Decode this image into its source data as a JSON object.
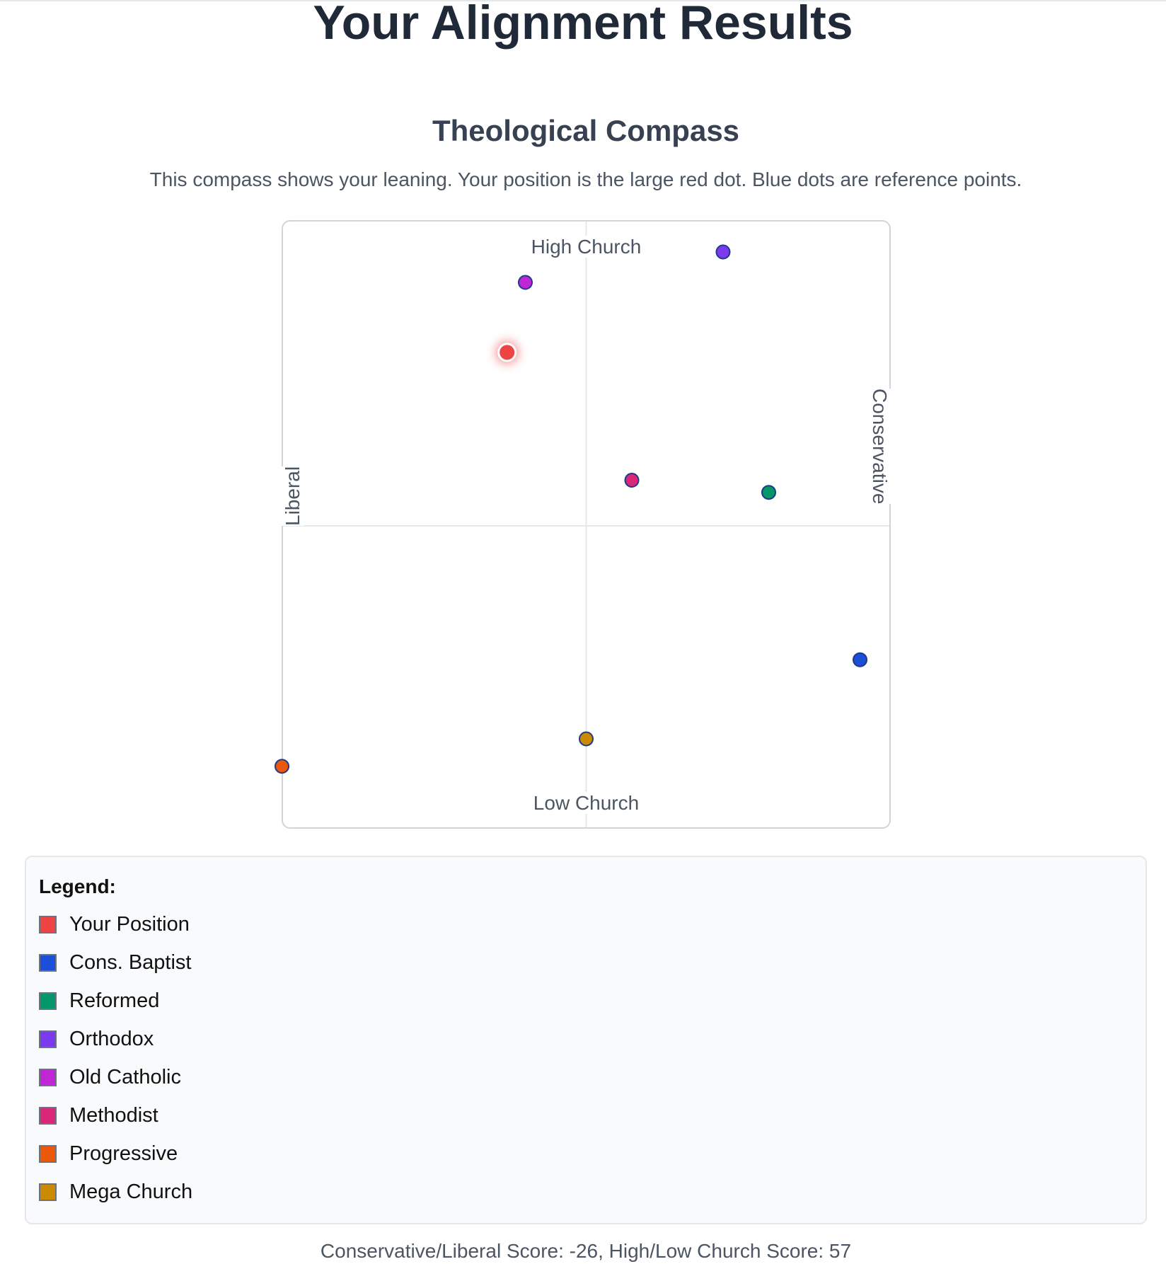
{
  "header": {
    "title": "Your Alignment Results"
  },
  "section": {
    "title": "Theological Compass",
    "description": "This compass shows your leaning. Your position is the large red dot. Blue dots are reference points."
  },
  "chart_data": {
    "type": "scatter",
    "title": "Theological Compass",
    "axis_labels": {
      "top": "High Church",
      "bottom": "Low Church",
      "left": "Liberal",
      "right": "Conservative"
    },
    "xlim": [
      -100,
      100
    ],
    "ylim": [
      -100,
      100
    ],
    "grid": "center crosshair",
    "points": [
      {
        "name": "Your Position",
        "x": -26,
        "y": 57,
        "color": "#ef4444",
        "highlight": true
      },
      {
        "name": "Cons. Baptist",
        "x": 90,
        "y": -44,
        "color": "#1d4ed8"
      },
      {
        "name": "Reformed",
        "x": 60,
        "y": 11,
        "color": "#059669"
      },
      {
        "name": "Orthodox",
        "x": 45,
        "y": 90,
        "color": "#7c3aed"
      },
      {
        "name": "Old Catholic",
        "x": -20,
        "y": 80,
        "color": "#c026d3"
      },
      {
        "name": "Methodist",
        "x": 15,
        "y": 15,
        "color": "#db2777"
      },
      {
        "name": "Progressive",
        "x": -100,
        "y": -79,
        "color": "#ea580c"
      },
      {
        "name": "Mega Church",
        "x": 0,
        "y": -70,
        "color": "#ca8a04"
      }
    ]
  },
  "legend": {
    "title": "Legend:",
    "items": [
      {
        "label": "Your Position",
        "color": "#ef4444"
      },
      {
        "label": "Cons. Baptist",
        "color": "#1d4ed8"
      },
      {
        "label": "Reformed",
        "color": "#059669"
      },
      {
        "label": "Orthodox",
        "color": "#7c3aed"
      },
      {
        "label": "Old Catholic",
        "color": "#c026d3"
      },
      {
        "label": "Methodist",
        "color": "#db2777"
      },
      {
        "label": "Progressive",
        "color": "#ea580c"
      },
      {
        "label": "Mega Church",
        "color": "#ca8a04"
      }
    ]
  },
  "footer": {
    "scores": "Conservative/Liberal Score: -26, High/Low Church Score: 57"
  }
}
